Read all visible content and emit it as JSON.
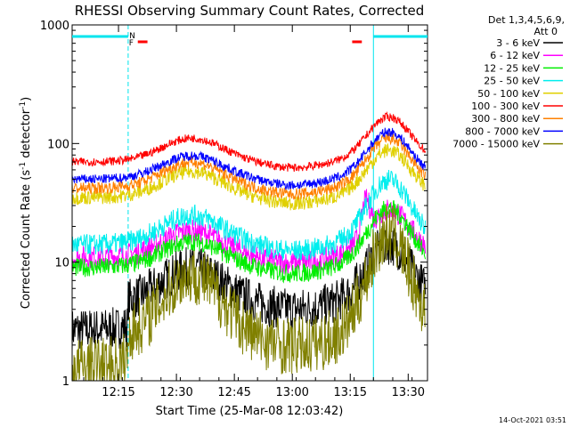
{
  "chart_data": {
    "type": "line",
    "title": "RHESSI Observing Summary Count Rates, Corrected",
    "xlabel": "Start Time (25-Mar-08 12:03:42)",
    "ylabel": "Corrected Count Rate (s",
    "ylabel_sup1": "-1",
    "ylabel_mid": " detector",
    "ylabel_sup2": "-1",
    "ylabel_end": ")",
    "yscale": "log",
    "ylim": [
      1,
      1000
    ],
    "xlim_minutes": [
      5.0,
      47.0
    ],
    "x_ticks": [
      {
        "m": 17,
        "label": "12:15"
      },
      {
        "m": 32,
        "label": "12:30"
      },
      {
        "m": 47,
        "label": "12:45"
      },
      {
        "m": 62,
        "label": "13:00"
      },
      {
        "m": 77,
        "label": "13:15"
      },
      {
        "m": 92,
        "label": "13:30"
      }
    ],
    "y_ticks": [
      {
        "v": 1,
        "label": "1"
      },
      {
        "v": 10,
        "label": "10"
      },
      {
        "v": 100,
        "label": "100"
      },
      {
        "v": 1000,
        "label": "1000"
      }
    ],
    "legend_header": [
      "Det 1,3,4,5,6,9,",
      "Att 0"
    ],
    "legend_position": "right",
    "timestamp": "14-Oct-2021 03:51",
    "flags": [
      {
        "label": "N",
        "color": "#00e5ee"
      },
      {
        "label": "F",
        "color": "#ff0000"
      }
    ],
    "series": [
      {
        "name": "3 - 6 keV",
        "color": "#000000"
      },
      {
        "name": "6 - 12 keV",
        "color": "#ff00ff"
      },
      {
        "name": "12 - 25 keV",
        "color": "#00ee00"
      },
      {
        "name": "25 - 50 keV",
        "color": "#00eeee"
      },
      {
        "name": "50 - 100 keV",
        "color": "#e0d000"
      },
      {
        "name": "100 - 300 keV",
        "color": "#ff0000"
      },
      {
        "name": "300 - 800 keV",
        "color": "#ff8000"
      },
      {
        "name": "800 - 7000 keV",
        "color": "#0000ff"
      },
      {
        "name": "7000 - 15000 keV",
        "color": "#808000"
      }
    ]
  }
}
